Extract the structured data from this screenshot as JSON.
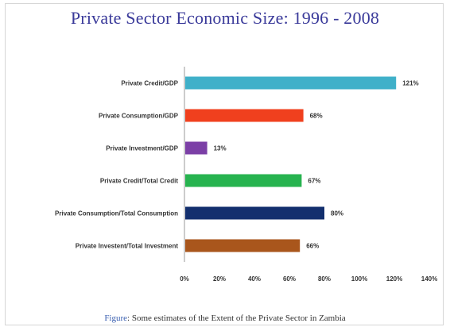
{
  "chart_data": {
    "type": "bar",
    "orientation": "horizontal",
    "title": "Private Sector Economic Size: 1996 - 2008",
    "categories": [
      "Private Credit/GDP",
      "Private Consumption/GDP",
      "Private Investment/GDP",
      "Private Credit/Total Credit",
      "Private Consumption/Total Consumption",
      "Private Investent/Total Investment"
    ],
    "values": [
      121,
      68,
      13,
      67,
      80,
      66
    ],
    "value_labels": [
      "121%",
      "68%",
      "13%",
      "67%",
      "80%",
      "66%"
    ],
    "colors": [
      "#3fb0c9",
      "#f0401e",
      "#7b3fa6",
      "#27b34f",
      "#132f6e",
      "#a9561c"
    ],
    "xlim": [
      0,
      140
    ],
    "xticks": [
      "0%",
      "20%",
      "40%",
      "60%",
      "80%",
      "100%",
      "120%",
      "140%"
    ],
    "grid": false,
    "legend": "none"
  },
  "caption": {
    "lead": "Figure",
    "text": ": Some estimates of the Extent of the Private Sector in Zambia"
  }
}
